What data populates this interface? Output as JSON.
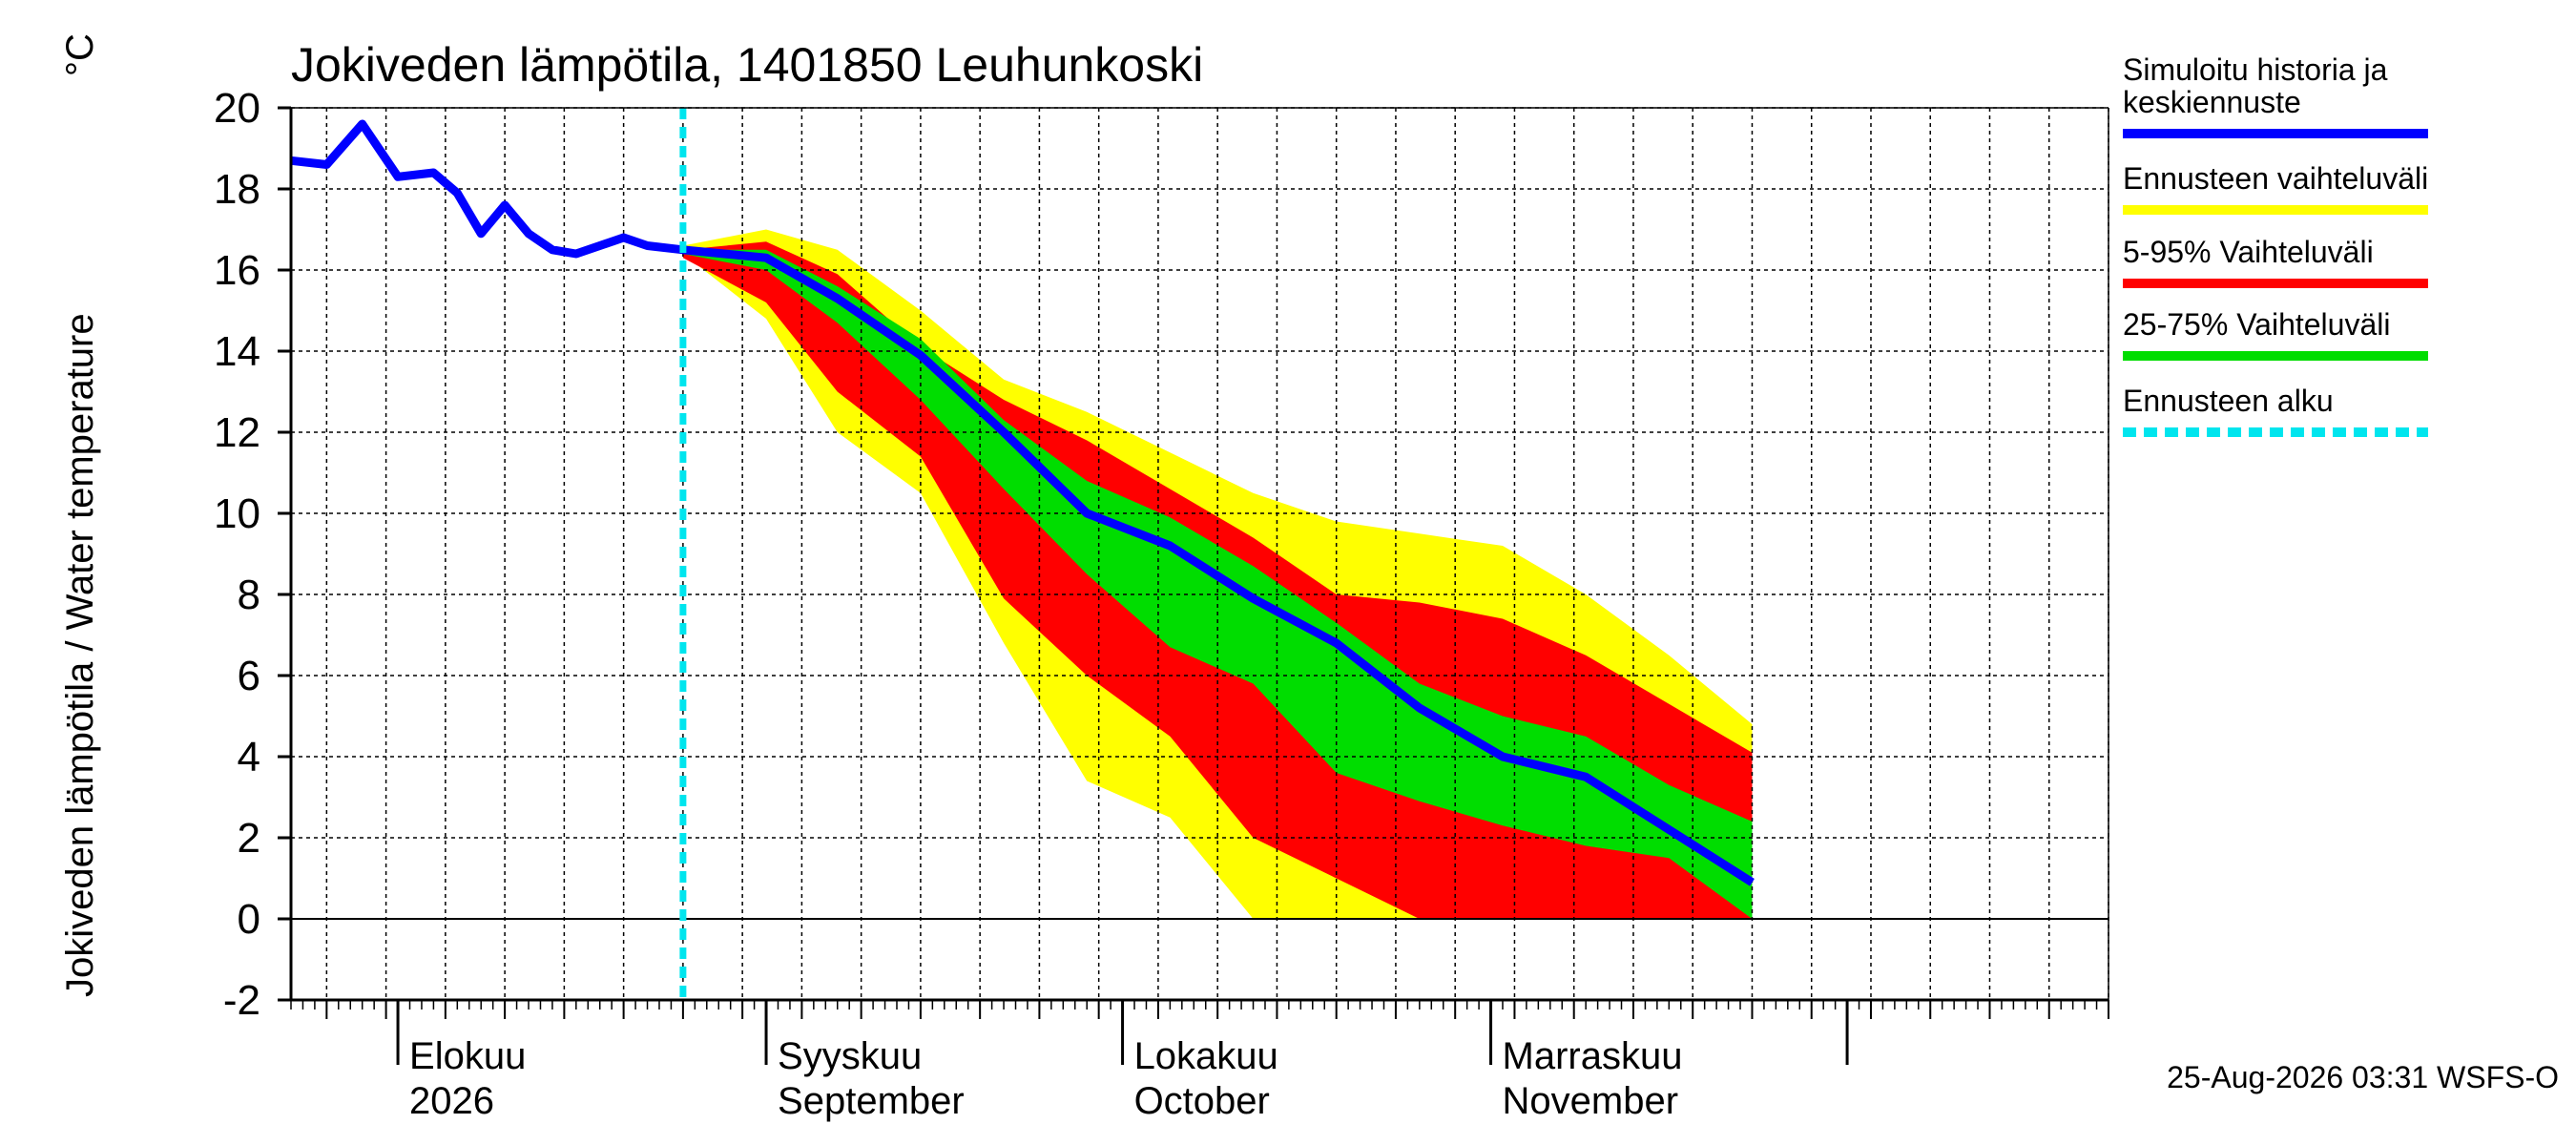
{
  "chart_data": {
    "type": "area",
    "title": "Jokiveden lämpötila, 1401850 Leuhunkoski",
    "ylabel": "Jokiveden lämpötila / Water temperature",
    "yunit": "°C",
    "ylim": [
      -2,
      20
    ],
    "yticks": [
      -2,
      0,
      2,
      4,
      6,
      8,
      10,
      12,
      14,
      16,
      18,
      20
    ],
    "xlim": [
      "2026-07-23",
      "2026-12-23"
    ],
    "grid": true,
    "legend_position": "right",
    "month_labels": [
      {
        "date": "2026-08-01",
        "fi": "Elokuu",
        "en": "2026"
      },
      {
        "date": "2026-09-01",
        "fi": "Syyskuu",
        "en": "September"
      },
      {
        "date": "2026-10-01",
        "fi": "Lokakuu",
        "en": "October"
      },
      {
        "date": "2026-11-01",
        "fi": "Marraskuu",
        "en": "November"
      }
    ],
    "forecast_start": "2026-08-25",
    "history_x": [
      "2026-07-23",
      "2026-07-26",
      "2026-07-29",
      "2026-08-01",
      "2026-08-04",
      "2026-08-06",
      "2026-08-08",
      "2026-08-10",
      "2026-08-12",
      "2026-08-14",
      "2026-08-16",
      "2026-08-18",
      "2026-08-20",
      "2026-08-22",
      "2026-08-25"
    ],
    "history_y": [
      18.7,
      18.6,
      19.6,
      18.3,
      18.4,
      17.9,
      16.9,
      17.6,
      16.9,
      16.5,
      16.4,
      16.6,
      16.8,
      16.6,
      16.5
    ],
    "forecast_x": [
      "2026-08-25",
      "2026-09-01",
      "2026-09-07",
      "2026-09-14",
      "2026-09-21",
      "2026-09-28",
      "2026-10-05",
      "2026-10-12",
      "2026-10-19",
      "2026-10-26",
      "2026-11-02",
      "2026-11-09",
      "2026-11-16",
      "2026-11-23"
    ],
    "series": [
      {
        "name": "Simuloitu historia ja keskiennuste",
        "color": "#0000ff",
        "values": [
          16.5,
          16.3,
          15.3,
          13.9,
          12.0,
          10.0,
          9.2,
          7.9,
          6.8,
          5.2,
          4.0,
          3.5,
          2.2,
          0.9
        ]
      },
      {
        "name": "Ennusteen vaihteluväli",
        "color": "#ffff00",
        "upper": [
          16.6,
          17.0,
          16.5,
          15.0,
          13.3,
          12.5,
          11.5,
          10.5,
          9.8,
          9.5,
          9.2,
          8.0,
          6.5,
          4.8
        ],
        "lower": [
          16.4,
          14.8,
          12.0,
          10.5,
          6.8,
          3.4,
          2.5,
          0.0,
          0.0,
          0.0,
          0.0,
          0.0,
          0.0,
          0.0
        ]
      },
      {
        "name": "5-95% Vaihteluväli",
        "color": "#ff0000",
        "upper": [
          16.5,
          16.7,
          15.9,
          14.1,
          12.8,
          11.8,
          10.6,
          9.4,
          8.0,
          7.8,
          7.4,
          6.5,
          5.3,
          4.1
        ],
        "lower": [
          16.3,
          15.2,
          13.0,
          11.4,
          7.9,
          6.0,
          4.5,
          2.0,
          1.0,
          0.0,
          0.0,
          0.0,
          0.0,
          0.0
        ]
      },
      {
        "name": "25-75% Vaihteluväli",
        "color": "#00dd00",
        "upper": [
          16.5,
          16.5,
          15.6,
          14.3,
          12.3,
          10.8,
          9.9,
          8.7,
          7.3,
          5.8,
          5.0,
          4.5,
          3.3,
          2.4
        ],
        "lower": [
          16.4,
          16.0,
          14.7,
          12.8,
          10.6,
          8.5,
          6.7,
          5.8,
          3.6,
          2.9,
          2.3,
          1.8,
          1.5,
          0.0
        ]
      },
      {
        "name": "Ennusteen alku",
        "color": "#00e5ee",
        "dashed": true
      }
    ]
  },
  "legend": [
    {
      "label_lines": [
        "Simuloitu historia ja",
        "keskiennuste"
      ],
      "color": "#0000ff",
      "style": "solid"
    },
    {
      "label_lines": [
        "Ennusteen vaihteluväli"
      ],
      "color": "#ffff00",
      "style": "solid"
    },
    {
      "label_lines": [
        "5-95% Vaihteluväli"
      ],
      "color": "#ff0000",
      "style": "solid"
    },
    {
      "label_lines": [
        "25-75% Vaihteluväli"
      ],
      "color": "#00dd00",
      "style": "solid"
    },
    {
      "label_lines": [
        "Ennusteen alku"
      ],
      "color": "#00e5ee",
      "style": "dashed"
    }
  ],
  "footer": "25-Aug-2026 03:31 WSFS-O"
}
